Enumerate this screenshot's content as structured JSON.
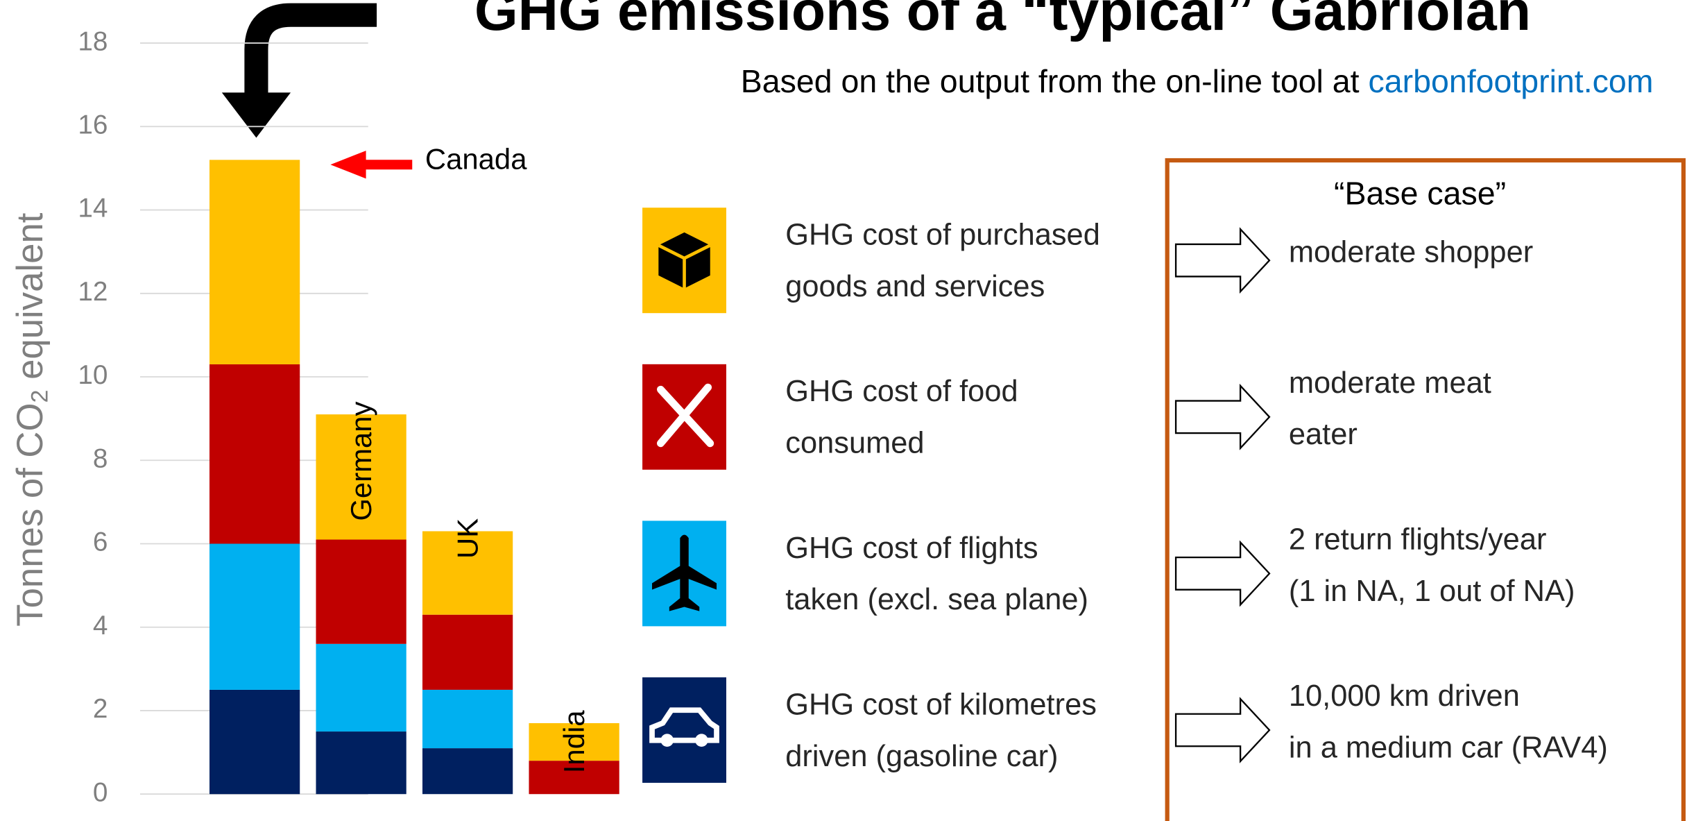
{
  "chart_data": {
    "type": "stacked_bar",
    "title": "GHG emissions of a “typical” Gabriolan",
    "subtitle": "Based on the output from the on-line tool at ",
    "subtitle_link": "carbonfootprint.com",
    "ylabel": {
      "text": "Tonnes of CO",
      "sub": "2",
      "rest": " equivalent"
    },
    "categories": [
      "Canada",
      "Germany",
      "UK",
      "India"
    ],
    "series": [
      {
        "name": [
          "GHG cost of kilometres",
          "driven (gasoline car)"
        ],
        "color": "#002060",
        "values": [
          2.5,
          1.5,
          1.1,
          0
        ]
      },
      {
        "name": [
          "GHG cost of flights",
          "taken (excl. sea plane)"
        ],
        "color": "#00b0f0",
        "values": [
          3.5,
          2.1,
          1.4,
          0
        ]
      },
      {
        "name": [
          "GHG cost of food",
          "consumed"
        ],
        "color": "#c00000",
        "values": [
          4.3,
          2.5,
          1.8,
          0.8
        ]
      },
      {
        "name": [
          "GHG cost of purchased",
          "goods and services"
        ],
        "color": "#ffc000",
        "values": [
          4.9,
          3.0,
          2.0,
          0.9
        ]
      }
    ],
    "ylim": [
      0,
      18
    ],
    "yticks": [
      0,
      2,
      4,
      6,
      8,
      10,
      12,
      14,
      16,
      18
    ],
    "grid": true
  },
  "base_case": {
    "title": "“Base case”",
    "items": [
      [
        "10,000 km driven",
        "in a medium car (RAV4)"
      ],
      [
        "2 return flights/year",
        "(1 in NA, 1 out of NA)"
      ],
      [
        "moderate meat",
        "eater"
      ],
      [
        "moderate shopper"
      ]
    ]
  }
}
